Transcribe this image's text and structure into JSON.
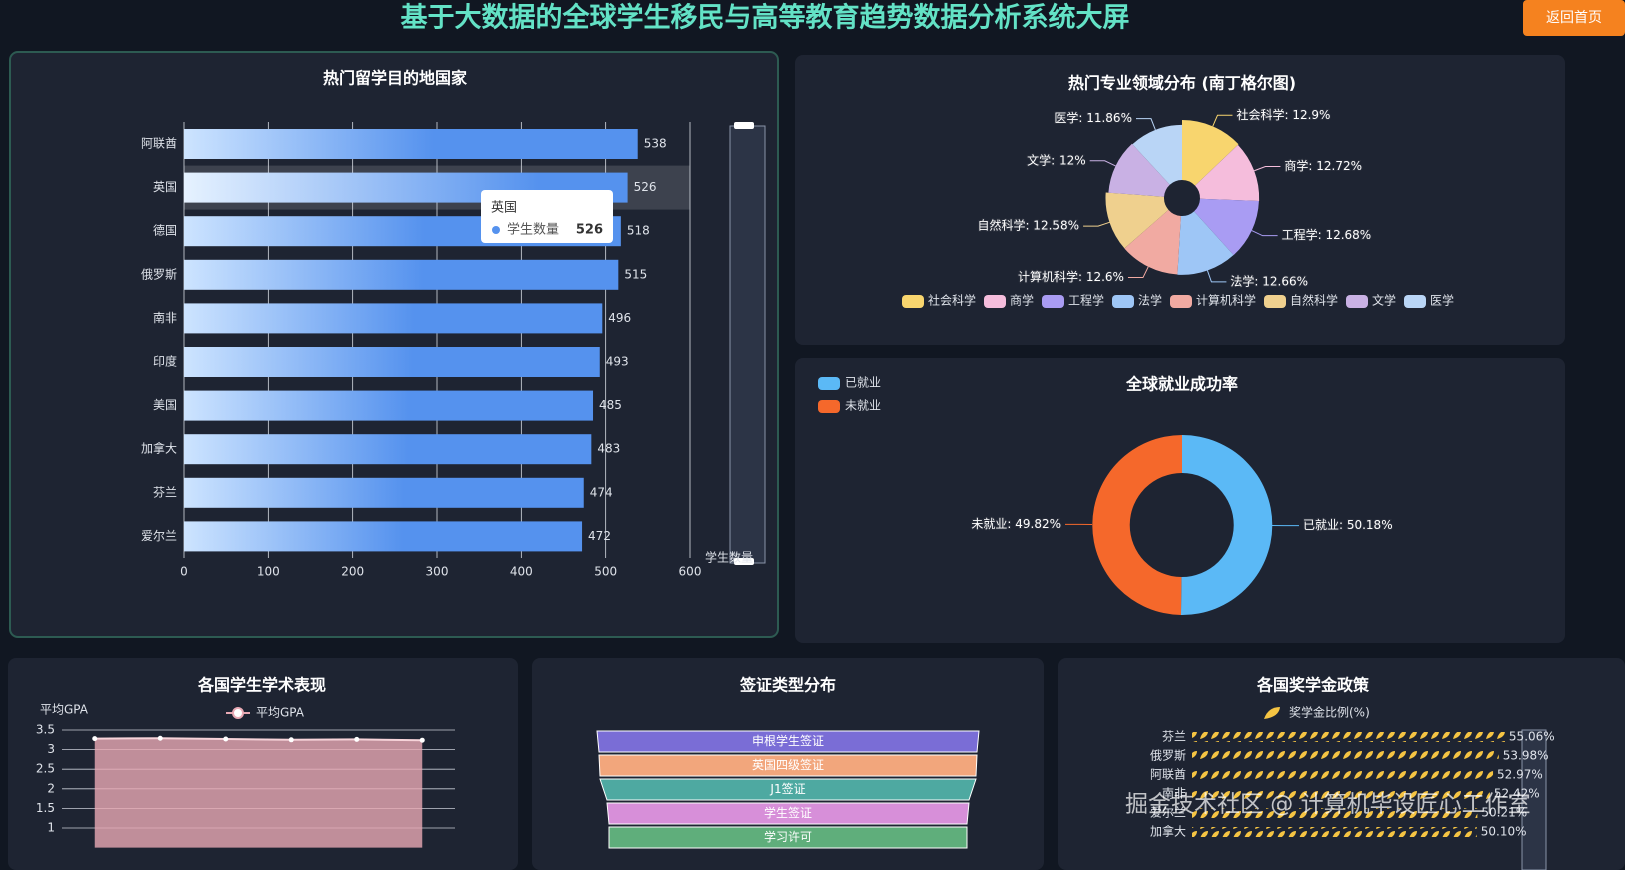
{
  "header": {
    "title": "基于大数据的全球学生移民与高等教育趋势数据分析系统大屏",
    "button": "返回首页"
  },
  "watermark": "掘金技术社区 @ 计算机毕设匠心工作室",
  "chart_data": [
    {
      "type": "bar",
      "title": "热门留学目的地国家",
      "categories": [
        "阿联酋",
        "英国",
        "德国",
        "俄罗斯",
        "南非",
        "印度",
        "美国",
        "加拿大",
        "芬兰",
        "爱尔兰"
      ],
      "series": [
        {
          "name": "学生数量",
          "color": "#5592ee",
          "values": [
            538,
            526,
            518,
            515,
            496,
            493,
            485,
            483,
            474,
            472
          ]
        }
      ],
      "xlim": [
        0,
        600
      ],
      "xticks": [
        0,
        100,
        200,
        300,
        400,
        500,
        600
      ],
      "x_axis_label": "学生数量",
      "tooltip_index": 1
    },
    {
      "type": "rose",
      "title": "热门专业领域分布 (南丁格尔图)",
      "categories": [
        "社会科学",
        "商学",
        "工程学",
        "法学",
        "计算机科学",
        "自然科学",
        "文学",
        "医学"
      ],
      "values": [
        12.9,
        12.72,
        12.68,
        12.66,
        12.6,
        12.58,
        12,
        11.86
      ],
      "value_labels": [
        "社会科学: 12.9%",
        "商学: 12.72%",
        "工程学: 12.68%",
        "法学: 12.66%",
        "计算机科学: 12.6%",
        "自然科学: 12.58%",
        "文学: 12%",
        "医学: 11.86%"
      ],
      "colors": [
        "#f8d56e",
        "#f5bddc",
        "#a99cf3",
        "#9ec6f6",
        "#f1aaa2",
        "#efd08e",
        "#c9b1e4",
        "#b9d5f6"
      ]
    },
    {
      "type": "donut",
      "title": "全球就业成功率",
      "categories": [
        "已就业",
        "未就业"
      ],
      "values": [
        50.18,
        49.82
      ],
      "value_labels": [
        "已就业: 50.18%",
        "未就业: 49.82%"
      ],
      "colors": [
        "#5bb9f6",
        "#f5682b"
      ]
    },
    {
      "type": "line",
      "title": "各国学生学术表现",
      "y_axis_label": "平均GPA",
      "categories": [
        null,
        null,
        null,
        null,
        null,
        null
      ],
      "series": [
        {
          "name": "平均GPA",
          "color": "#e8a9b4",
          "values": [
            3.28,
            3.29,
            3.27,
            3.25,
            3.26,
            3.24
          ]
        }
      ],
      "ylim": [
        0.5,
        3.5
      ],
      "yticks": [
        1,
        1.5,
        2,
        2.5,
        3,
        3.5
      ],
      "grid": true
    },
    {
      "type": "funnel",
      "title": "签证类型分布",
      "categories": [
        "申根学生签证",
        "英国四级签证",
        "J1签证",
        "学生签证",
        "学习许可"
      ],
      "values": [
        382,
        378,
        376,
        362,
        358
      ],
      "colors": [
        "#7a6dd6",
        "#f2a67c",
        "#4ea9a1",
        "#d78fd9",
        "#5fae7b"
      ]
    },
    {
      "type": "pictorial",
      "title": "各国奖学金政策",
      "categories": [
        "芬兰",
        "俄罗斯",
        "阿联酋",
        "南非",
        "爱尔兰",
        "加拿大"
      ],
      "series": [
        {
          "name": "奖学金比例(%)",
          "color": "#f5c443",
          "values": [
            55.06,
            53.98,
            52.97,
            52.42,
            50.21,
            50.1
          ],
          "value_labels": [
            "55.06%",
            "53.98%",
            "52.97%",
            "52.42%",
            "50.21%",
            "50.10%"
          ]
        }
      ],
      "xlim": [
        0,
        60
      ]
    }
  ]
}
